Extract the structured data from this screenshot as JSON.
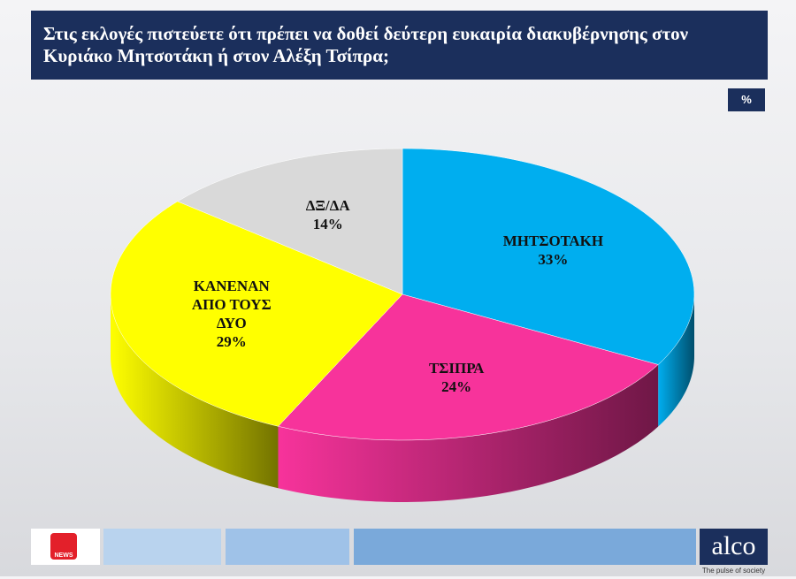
{
  "chart_data": {
    "type": "pie",
    "title": "Στις εκλογές πιστεύετε ότι πρέπει να δοθεί δεύτερη ευκαιρία διακυβέρνησης στον Κυριάκο Μητσοτάκη ή στον Αλέξη Τσίπρα;",
    "unit_label": "%",
    "categories": [
      "ΜΗΤΣΟΤΑΚΗ",
      "ΤΣΙΠΡΑ",
      "ΚΑΝΕΝΑΝ ΑΠΟ ΤΟΥΣ ΔΥΟ",
      "ΔΞ/ΔΑ"
    ],
    "values": [
      33,
      24,
      29,
      14
    ],
    "value_labels": [
      "33%",
      "24%",
      "29%",
      "14%"
    ],
    "colors": [
      "#00aeef",
      "#f7339b",
      "#ffff00",
      "#d9d9d9"
    ]
  },
  "footer": {
    "news_logo": "NEWS",
    "brand": "alco",
    "tagline": "The pulse of society"
  }
}
